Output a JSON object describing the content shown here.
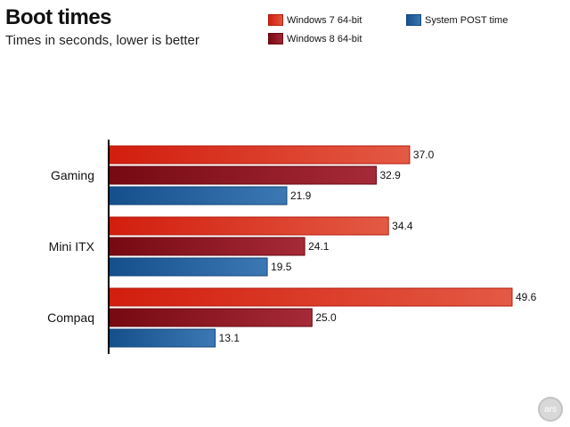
{
  "header": {
    "title": "Boot times",
    "subtitle": "Times in seconds, lower is better"
  },
  "legend": {
    "w7": "Windows 7 64-bit",
    "w8": "Windows 8 64-bit",
    "post": "System POST time"
  },
  "logo": {
    "text": "ars"
  },
  "colors": {
    "w7": "#d42010",
    "w8": "#7a0a14",
    "post": "#16528e"
  },
  "chart_data": {
    "type": "bar",
    "orientation": "horizontal",
    "title": "Boot times",
    "subtitle": "Times in seconds, lower is better",
    "categories": [
      "Gaming",
      "Mini ITX",
      "Compaq"
    ],
    "series": [
      {
        "name": "Windows 7 64-bit",
        "values": [
          37.0,
          34.4,
          49.6
        ]
      },
      {
        "name": "Windows 8 64-bit",
        "values": [
          32.9,
          24.1,
          25.0
        ]
      },
      {
        "name": "System POST time",
        "values": [
          21.9,
          19.5,
          13.1
        ]
      }
    ],
    "value_labels": [
      [
        "37.0",
        "34.4",
        "49.6"
      ],
      [
        "32.9",
        "24.1",
        "25.0"
      ],
      [
        "21.9",
        "19.5",
        "13.1"
      ]
    ],
    "xlim": [
      0,
      49.6
    ],
    "grid": false,
    "legend_position": "top-right"
  }
}
